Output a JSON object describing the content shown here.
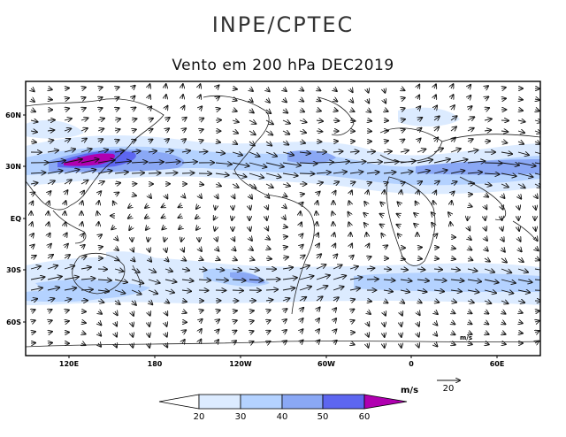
{
  "header": {
    "organization": "INPE/CPTEC",
    "title": "Vento em 200 hPa DEC2019"
  },
  "map": {
    "lat_labels": [
      "60N",
      "30N",
      "EQ",
      "30S",
      "60S"
    ],
    "lon_labels": [
      "120E",
      "180",
      "120W",
      "60W",
      "0",
      "60E"
    ],
    "inner_vector_label": "m/s"
  },
  "legend": {
    "unit": "m/s",
    "reference_vector_value": "20",
    "breaks": [
      "20",
      "30",
      "40",
      "50",
      "60"
    ],
    "colors": [
      "#ffffff",
      "#dcebff",
      "#b4d2ff",
      "#8aa8f5",
      "#5d66f0",
      "#b000b0"
    ]
  }
}
